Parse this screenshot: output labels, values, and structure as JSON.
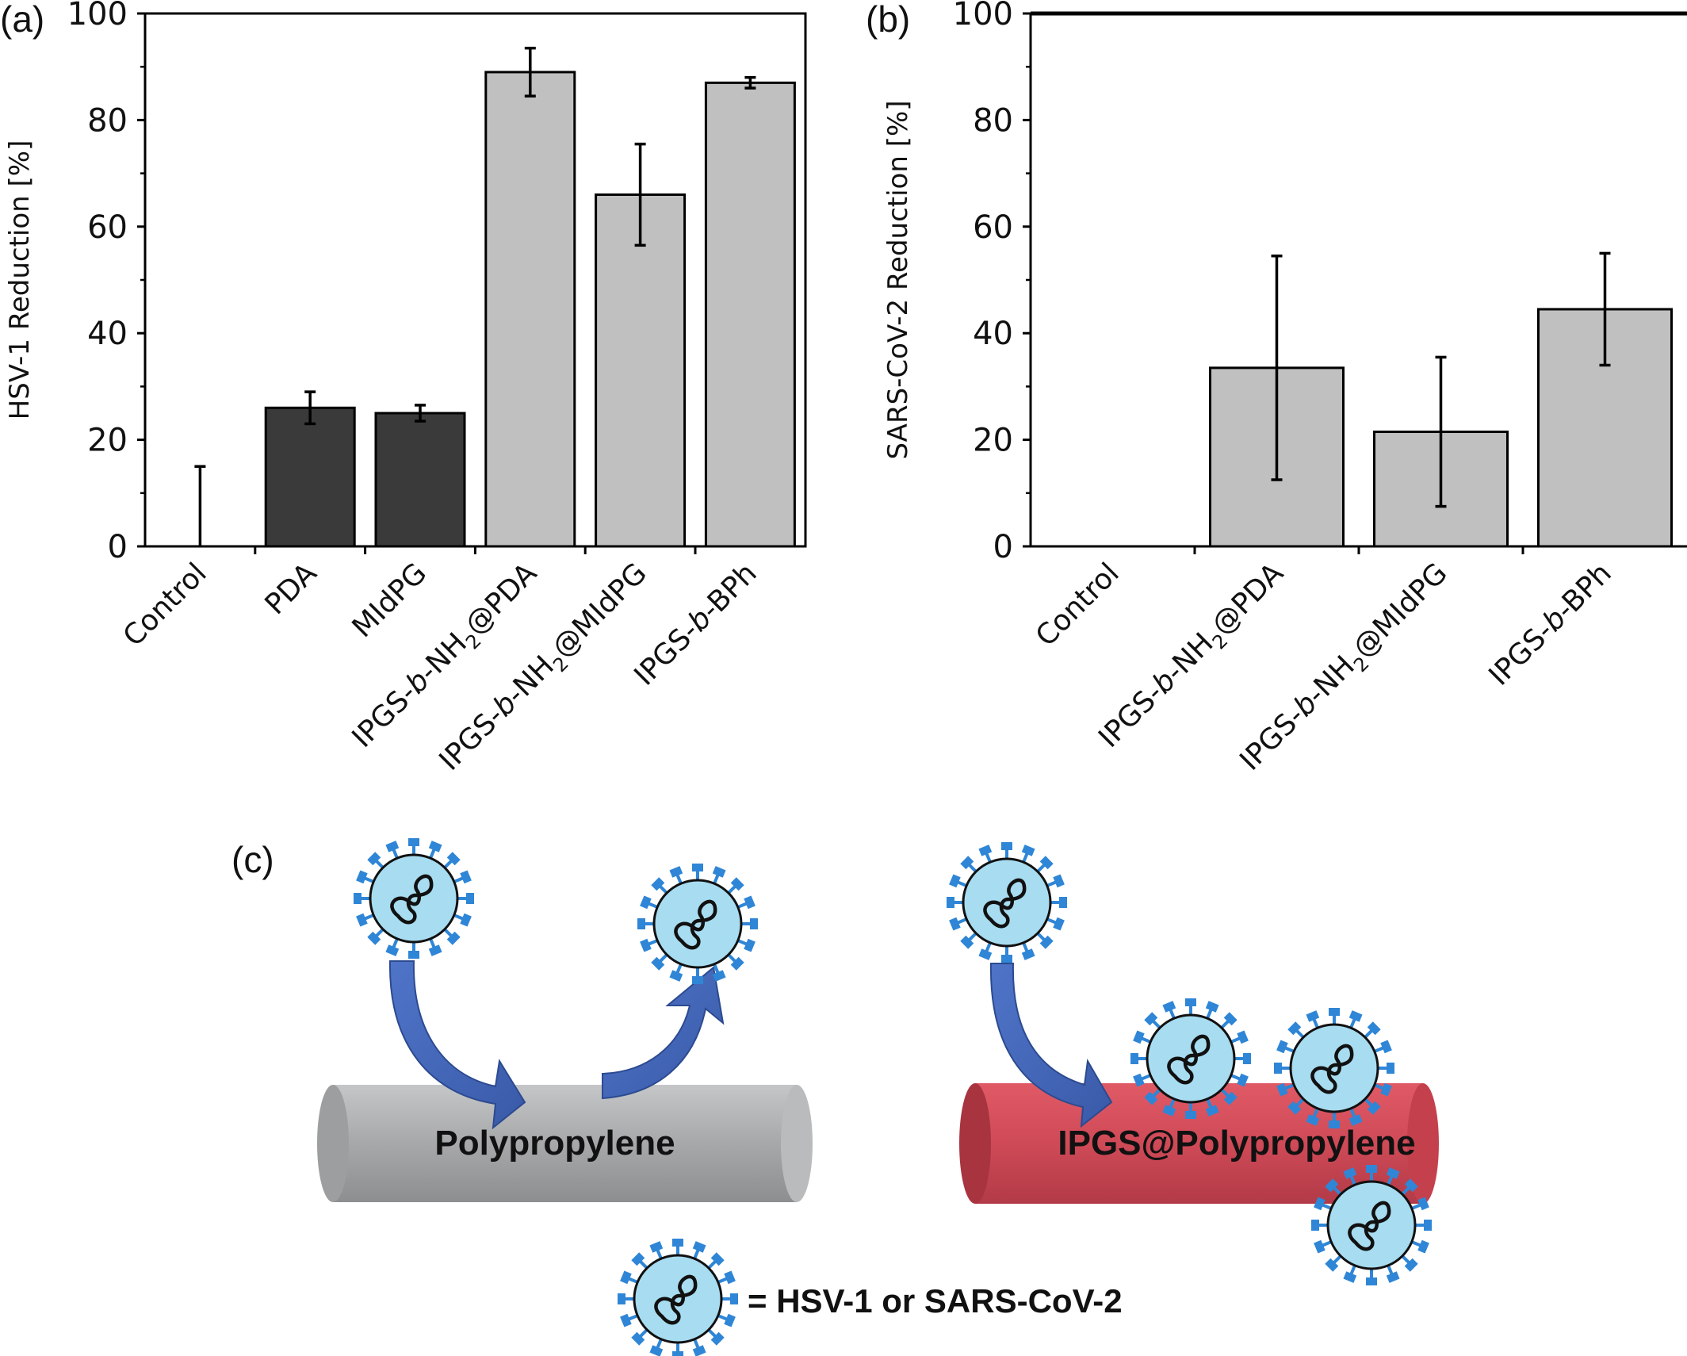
{
  "panel_labels": {
    "a": "(a)",
    "b": "(b)",
    "c": "(c)"
  },
  "colors": {
    "dark_bar": "#3a3a3a",
    "light_bar": "#c0c0c0",
    "axis": "#000000",
    "virus_fill": "#a8dcf0",
    "virus_spike": "#2f86d6",
    "arrow": "#3f63b8",
    "pp_fiber": "#a9abad",
    "ipgs_fiber": "#cf4a57"
  },
  "chart_data": [
    {
      "type": "bar",
      "panel": "(a)",
      "ylabel": "HSV-1 Reduction [%]",
      "ylim": [
        0,
        100
      ],
      "yticks": [
        0,
        20,
        40,
        60,
        80,
        100
      ],
      "categories": [
        {
          "pre": "Control",
          "italic": "",
          "mid": "",
          "sub": "",
          "post": ""
        },
        {
          "pre": "PDA",
          "italic": "",
          "mid": "",
          "sub": "",
          "post": ""
        },
        {
          "pre": "MIdPG",
          "italic": "",
          "mid": "",
          "sub": "",
          "post": ""
        },
        {
          "pre": "IPGS-",
          "italic": "b",
          "mid": "-NH",
          "sub": "2",
          "post": "@PDA"
        },
        {
          "pre": "IPGS-",
          "italic": "b",
          "mid": "-NH",
          "sub": "2",
          "post": "@MIdPG"
        },
        {
          "pre": "IPGS-",
          "italic": "b",
          "mid": "-BPh",
          "sub": "",
          "post": ""
        }
      ],
      "values": [
        0,
        26,
        25,
        89,
        66,
        87
      ],
      "errors": [
        15,
        3,
        1.5,
        4.5,
        9.5,
        1
      ],
      "bar_colors": [
        "dark",
        "dark",
        "dark",
        "light",
        "light",
        "light"
      ]
    },
    {
      "type": "bar",
      "panel": "(b)",
      "ylabel": "SARS-CoV-2 Reduction [%]",
      "ylim": [
        0,
        100
      ],
      "yticks": [
        0,
        20,
        40,
        60,
        80,
        100
      ],
      "categories": [
        {
          "pre": "Control",
          "italic": "",
          "mid": "",
          "sub": "",
          "post": ""
        },
        {
          "pre": "IPGS-",
          "italic": "b",
          "mid": "-NH",
          "sub": "2",
          "post": "@PDA"
        },
        {
          "pre": "IPGS-",
          "italic": "b",
          "mid": "-NH",
          "sub": "2",
          "post": "@MIdPG"
        },
        {
          "pre": "IPGS-",
          "italic": "b",
          "mid": "-BPh",
          "sub": "",
          "post": ""
        }
      ],
      "values": [
        0,
        33.5,
        21.5,
        44.5
      ],
      "errors": [
        0,
        21,
        14,
        10.5
      ],
      "bar_colors": [
        "light",
        "light",
        "light",
        "light"
      ]
    }
  ],
  "schematic": {
    "left_fiber_label": "Polypropylene",
    "right_fiber_label": "IPGS@Polypropylene",
    "legend_text": "= HSV-1 or SARS-CoV-2"
  }
}
